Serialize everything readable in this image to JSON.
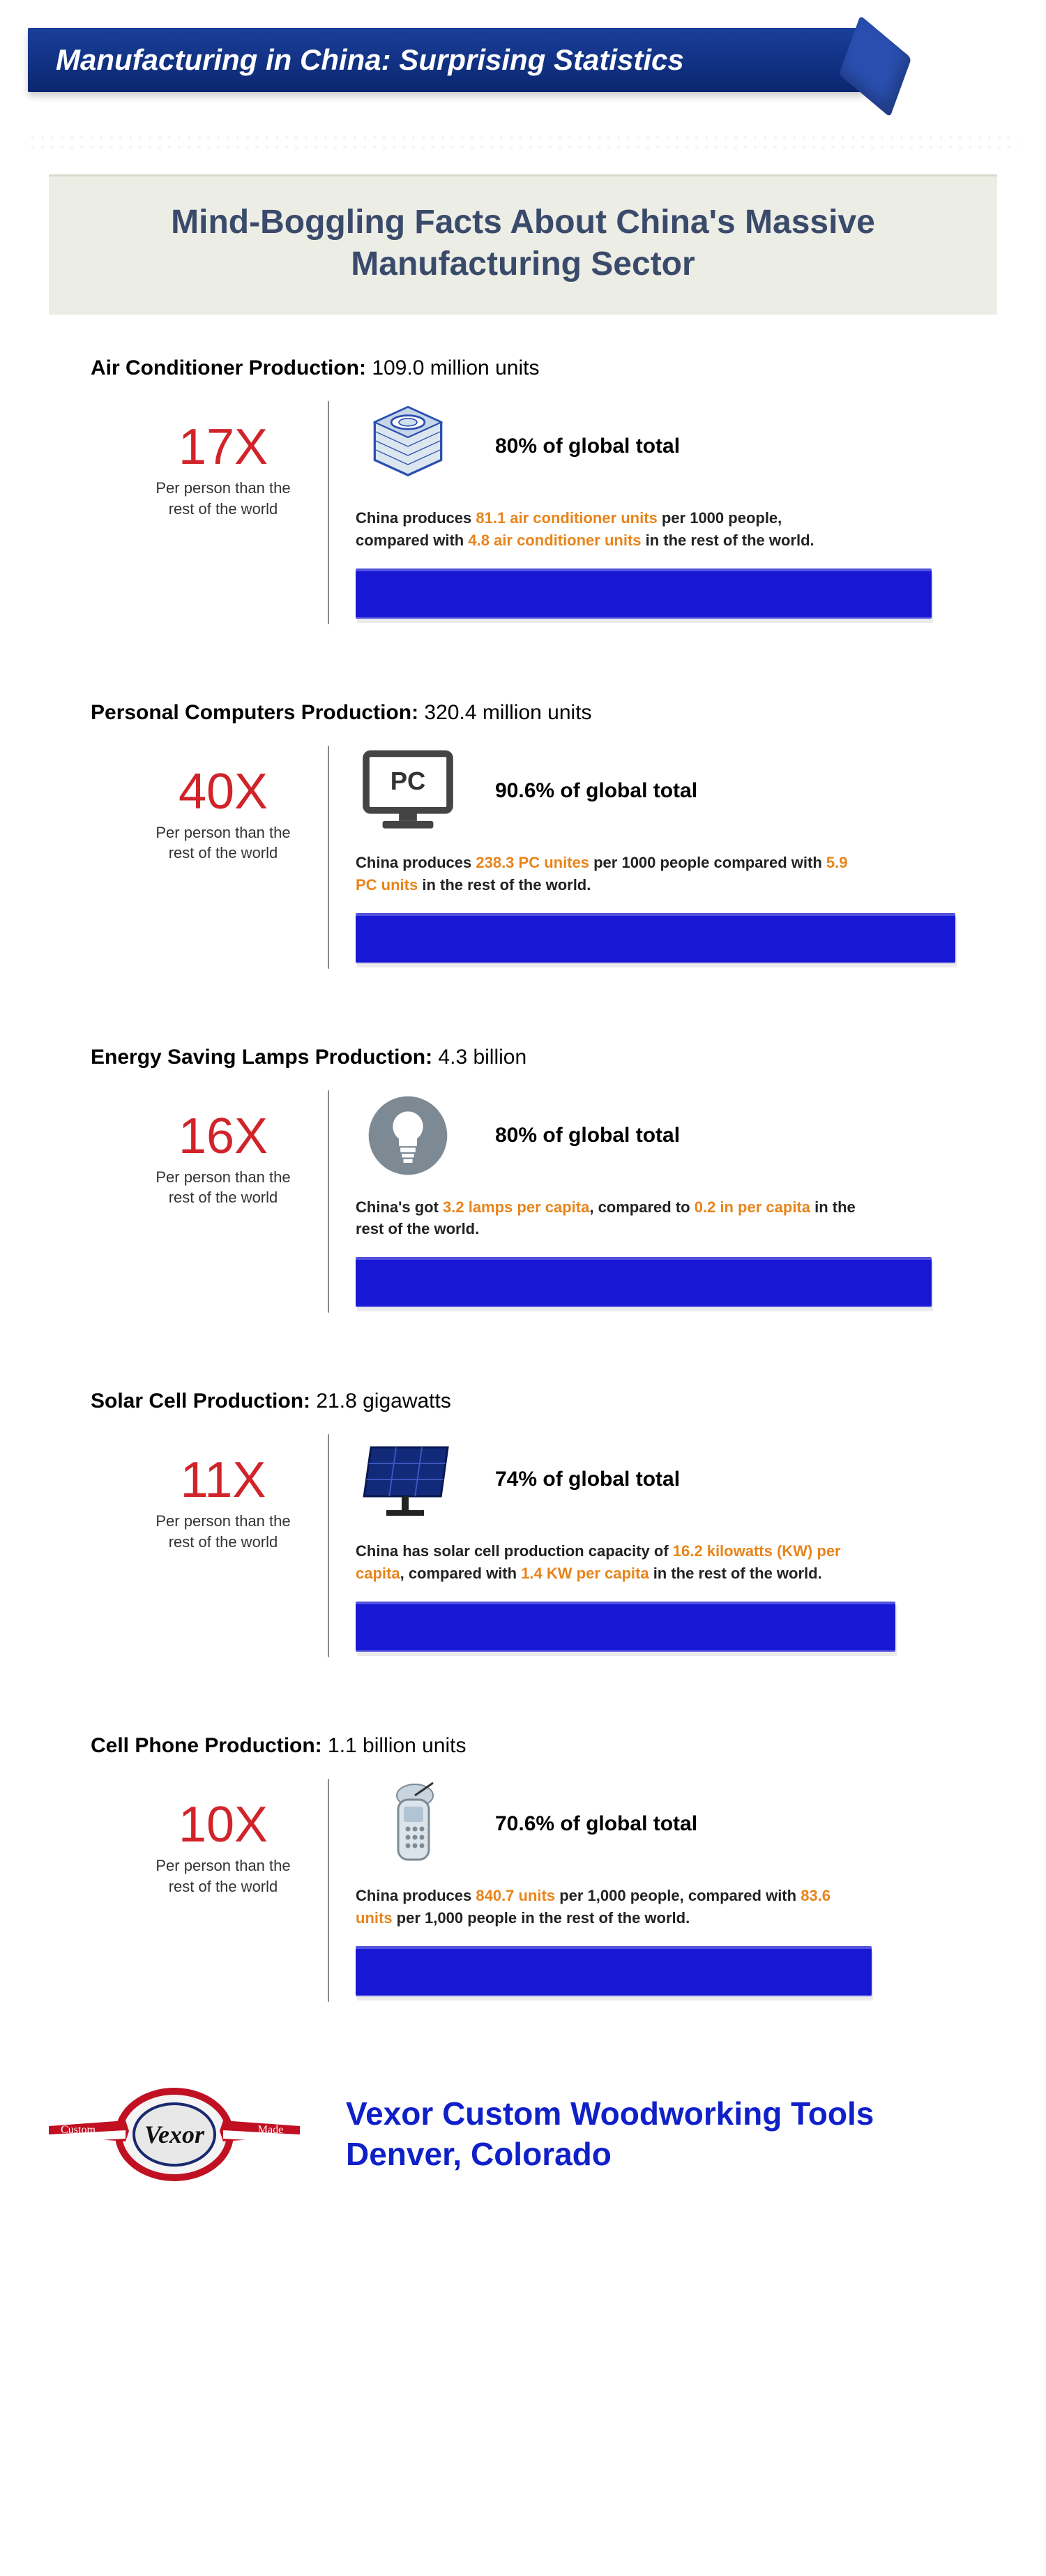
{
  "banner_title": "Manufacturing in China: Surprising Statistics",
  "subtitle": "Mind-Boggling Facts About China's Massive Manufacturing Sector",
  "colors": {
    "multiplier": "#d1232a",
    "highlight": "#e8841b",
    "bar": "#1818d4",
    "banner_bg": "#103080",
    "subtitle_bg": "#ecede5",
    "subtitle_text": "#3a4a6b",
    "footer_text": "#1020c8",
    "icon_gray": "#7d8a94",
    "icon_blue": "#2a4fb0"
  },
  "per_person_label": "Per person than the rest of the world",
  "global_total_suffix": "of global total",
  "stats": [
    {
      "id": "ac",
      "title_bold": "Air Conditioner Production:",
      "title_value": "109.0 million units",
      "multiplier": "17X",
      "global_pct": "80%",
      "desc_pre": "China produces ",
      "desc_hl1": "81.1 air conditioner units",
      "desc_mid": " per 1000 people, compared with ",
      "desc_hl2": "4.8 air conditioner units",
      "desc_post": " in the rest of the world.",
      "bar_width_pct": 96,
      "icon": "ac"
    },
    {
      "id": "pc",
      "title_bold": "Personal Computers Production:",
      "title_value": "320.4 million units",
      "multiplier": "40X",
      "global_pct": "90.6%",
      "desc_pre": "China produces ",
      "desc_hl1": "238.3 PC unites",
      "desc_mid": " per 1000 people compared with ",
      "desc_hl2": "5.9 PC units",
      "desc_post": " in the rest of the world.",
      "bar_width_pct": 100,
      "icon": "pc"
    },
    {
      "id": "lamp",
      "title_bold": "Energy Saving Lamps Production:",
      "title_value": "4.3 billion",
      "multiplier": "16X",
      "global_pct": "80%",
      "desc_pre": "China's got ",
      "desc_hl1": "3.2 lamps per capita",
      "desc_mid": ", compared to ",
      "desc_hl2": "0.2 in per capita",
      "desc_post": " in the rest of the world.",
      "bar_width_pct": 96,
      "icon": "lamp"
    },
    {
      "id": "solar",
      "title_bold": "Solar Cell Production:",
      "title_value": "21.8 gigawatts",
      "multiplier": "11X",
      "global_pct": "74%",
      "desc_pre": "China has solar cell production capacity of ",
      "desc_hl1": "16.2 kilowatts (KW) per capita",
      "desc_mid": ", compared with ",
      "desc_hl2": "1.4 KW per capita",
      "desc_post": " in the rest of the world.",
      "bar_width_pct": 90,
      "icon": "solar"
    },
    {
      "id": "phone",
      "title_bold": "Cell Phone Production:",
      "title_value": "1.1 billion units",
      "multiplier": "10X",
      "global_pct": "70.6%",
      "desc_pre": "China produces ",
      "desc_hl1": "840.7 units",
      "desc_mid": " per 1,000 people, compared with ",
      "desc_hl2": "83.6 units",
      "desc_post": " per 1,000 people in the rest of the world.",
      "bar_width_pct": 86,
      "icon": "phone"
    }
  ],
  "footer": {
    "line1": "Vexor Custom Woodworking Tools",
    "line2": "Denver, Colorado",
    "logo_label": "Vexor"
  }
}
